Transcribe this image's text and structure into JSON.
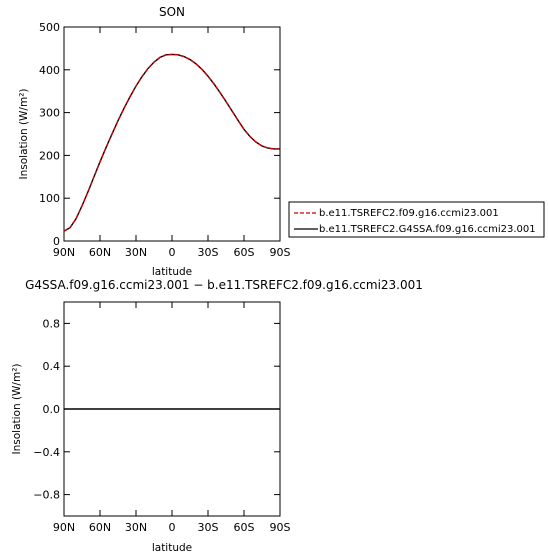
{
  "chart_data": [
    {
      "type": "line",
      "title": "SON",
      "xlabel": "latitude",
      "ylabel": "Insolation (W/m²)",
      "x_tick_labels": [
        "90N",
        "60N",
        "30N",
        "0",
        "30S",
        "60S",
        "90S"
      ],
      "x_ticks": [
        90,
        60,
        30,
        0,
        -30,
        -60,
        -90
      ],
      "xlim": [
        90,
        -90
      ],
      "ylim": [
        0,
        500
      ],
      "y_ticks": [
        0,
        100,
        200,
        300,
        400,
        500
      ],
      "y_tick_labels": [
        "0",
        "100",
        "200",
        "300",
        "400",
        "500"
      ],
      "x": [
        90,
        85,
        80,
        75,
        70,
        65,
        60,
        55,
        50,
        45,
        40,
        35,
        30,
        25,
        20,
        15,
        10,
        5,
        0,
        -5,
        -10,
        -15,
        -20,
        -25,
        -30,
        -35,
        -40,
        -45,
        -50,
        -55,
        -60,
        -65,
        -70,
        -75,
        -80,
        -85,
        -90
      ],
      "series": [
        {
          "name": "b.e11.TSREFC2.f09.g16.ccmi23.001",
          "color": "#cc0000",
          "dash": "dashed",
          "values": [
            23,
            31,
            52,
            82,
            115,
            150,
            185,
            218,
            250,
            281,
            310,
            337,
            362,
            384,
            403,
            418,
            429,
            435,
            436,
            435,
            431,
            424,
            414,
            401,
            385,
            367,
            347,
            326,
            304,
            282,
            261,
            244,
            231,
            222,
            217,
            215,
            215
          ]
        },
        {
          "name": "b.e11.TSREFC2.G4SSA.f09.g16.ccmi23.001",
          "color": "#000000",
          "dash": "solid",
          "values": [
            23,
            31,
            52,
            82,
            115,
            150,
            185,
            218,
            250,
            281,
            310,
            337,
            362,
            384,
            403,
            418,
            429,
            435,
            436,
            435,
            431,
            424,
            414,
            401,
            385,
            367,
            347,
            326,
            304,
            282,
            261,
            244,
            231,
            222,
            217,
            215,
            215
          ]
        }
      ],
      "legend_position": "right"
    },
    {
      "type": "line",
      "title": "G4SSA.f09.g16.ccmi23.001 − b.e11.TSREFC2.f09.g16.ccmi23.001",
      "xlabel": "latitude",
      "ylabel": "Insolation (W/m²)",
      "x_tick_labels": [
        "90N",
        "60N",
        "30N",
        "0",
        "30S",
        "60S",
        "90S"
      ],
      "x_ticks": [
        90,
        60,
        30,
        0,
        -30,
        -60,
        -90
      ],
      "xlim": [
        90,
        -90
      ],
      "ylim": [
        -1,
        1
      ],
      "y_ticks": [
        -0.8,
        -0.4,
        0,
        0.4,
        0.8
      ],
      "y_tick_labels": [
        "−0.8",
        "−0.4",
        "0.0",
        "0.4",
        "0.8"
      ],
      "x": [
        90,
        60,
        30,
        0,
        -30,
        -60,
        -90
      ],
      "series": [
        {
          "color": "#000000",
          "values": [
            0,
            0,
            0,
            0,
            0,
            0,
            0
          ]
        }
      ]
    }
  ]
}
